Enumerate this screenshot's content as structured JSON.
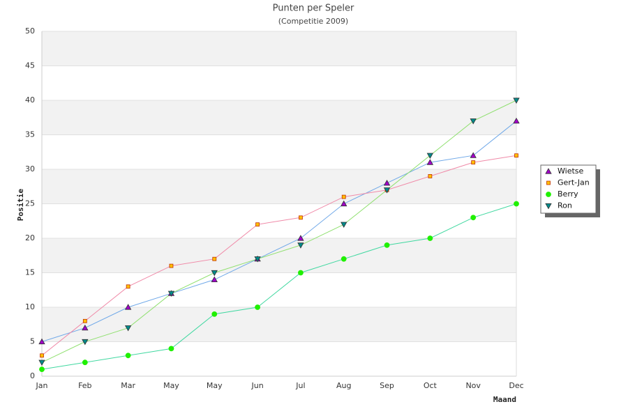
{
  "chart_data": {
    "type": "line",
    "title": "Punten per Speler",
    "subtitle": "(Competitie 2009)",
    "x_label": "Maand",
    "y_label": "Positie",
    "categories": [
      "Jan",
      "Feb",
      "Mar",
      "May",
      "May",
      "Jun",
      "Jul",
      "Aug",
      "Sep",
      "Oct",
      "Nov",
      "Dec"
    ],
    "ylim": [
      0,
      50
    ],
    "yticks": [
      0,
      5,
      10,
      15,
      20,
      25,
      30,
      35,
      40,
      45,
      50
    ],
    "grid": true,
    "legend": "right",
    "series": [
      {
        "name": "Wietse",
        "color": "#6fa8e8",
        "marker": "triangle-up",
        "marker_color": "#a000c8",
        "values": [
          5,
          7,
          10,
          12,
          14,
          17,
          20,
          25,
          28,
          31,
          32,
          37
        ]
      },
      {
        "name": "Gert-Jan",
        "color": "#f08aa8",
        "marker": "square",
        "marker_color": "#ffc000",
        "values": [
          3,
          8,
          13,
          16,
          17,
          22,
          23,
          26,
          27,
          29,
          31,
          32
        ]
      },
      {
        "name": "Berry",
        "color": "#40d8a0",
        "marker": "circle",
        "marker_color": "#20f000",
        "values": [
          1,
          2,
          3,
          4,
          9,
          10,
          15,
          17,
          19,
          20,
          23,
          25
        ]
      },
      {
        "name": "Ron",
        "color": "#90e070",
        "marker": "triangle-down",
        "marker_color": "#008a8a",
        "values": [
          2,
          5,
          7,
          12,
          15,
          17,
          19,
          22,
          27,
          32,
          37,
          40
        ]
      }
    ]
  }
}
